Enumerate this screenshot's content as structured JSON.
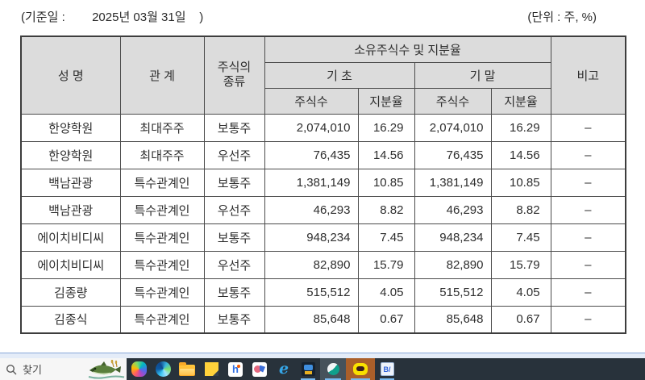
{
  "document": {
    "base_date_line": "(기준일 :        2025년 03월 31일    )",
    "unit_label": "(단위 : 주, %)"
  },
  "table": {
    "headers": {
      "name": "성 명",
      "relation": "관 계",
      "stock_type": "주식의\n종류",
      "ownership_group": "소유주식수 및 지분율",
      "begin": "기 초",
      "end": "기 말",
      "shares": "주식수",
      "ratio": "지분율",
      "note": "비고"
    },
    "rows": [
      {
        "name": "한양학원",
        "relation": "최대주주",
        "stock_type": "보통주",
        "begin_shares": "2,074,010",
        "begin_ratio": "16.29",
        "end_shares": "2,074,010",
        "end_ratio": "16.29",
        "note": "–"
      },
      {
        "name": "한양학원",
        "relation": "최대주주",
        "stock_type": "우선주",
        "begin_shares": "76,435",
        "begin_ratio": "14.56",
        "end_shares": "76,435",
        "end_ratio": "14.56",
        "note": "–"
      },
      {
        "name": "백남관광",
        "relation": "특수관계인",
        "stock_type": "보통주",
        "begin_shares": "1,381,149",
        "begin_ratio": "10.85",
        "end_shares": "1,381,149",
        "end_ratio": "10.85",
        "note": "–"
      },
      {
        "name": "백남관광",
        "relation": "특수관계인",
        "stock_type": "우선주",
        "begin_shares": "46,293",
        "begin_ratio": "8.82",
        "end_shares": "46,293",
        "end_ratio": "8.82",
        "note": "–"
      },
      {
        "name": "에이치비디씨",
        "relation": "특수관계인",
        "stock_type": "보통주",
        "begin_shares": "948,234",
        "begin_ratio": "7.45",
        "end_shares": "948,234",
        "end_ratio": "7.45",
        "note": "–"
      },
      {
        "name": "에이치비디씨",
        "relation": "특수관계인",
        "stock_type": "우선주",
        "begin_shares": "82,890",
        "begin_ratio": "15.79",
        "end_shares": "82,890",
        "end_ratio": "15.79",
        "note": "–"
      },
      {
        "name": "김종량",
        "relation": "특수관계인",
        "stock_type": "보통주",
        "begin_shares": "515,512",
        "begin_ratio": "4.05",
        "end_shares": "515,512",
        "end_ratio": "4.05",
        "note": "–"
      },
      {
        "name": "김종식",
        "relation": "특수관계인",
        "stock_type": "보통주",
        "begin_shares": "85,648",
        "begin_ratio": "0.67",
        "end_shares": "85,648",
        "end_ratio": "0.67",
        "note": "–"
      }
    ]
  },
  "taskbar": {
    "search_label": "찾기",
    "icon_glyphs": {
      "ie": "e",
      "docapp": "B/"
    },
    "icons": [
      "search-icon",
      "search-highlight-fish-icon",
      "copilot-icon",
      "edge-icon",
      "file-explorer-icon",
      "sticky-notes-icon",
      "hwp-icon",
      "pink-app-icon",
      "internet-explorer-icon",
      "game-app-icon",
      "whale-browser-icon",
      "kakaotalk-icon",
      "document-app-icon"
    ]
  },
  "colors": {
    "header_bg": "#dcdcdc",
    "table_border": "#4c4c4c",
    "text": "#303030",
    "taskbar_bg": "#28323b",
    "strip_bg": "#e4ecf8",
    "strip_line": "#88a8d8",
    "accent_underline": "#79bbf2",
    "search_bg": "#f6f6f6",
    "kakao_yellow": "#fae100",
    "kakao_btn_bg": "#aa5f2a",
    "folder_yellow": "#ffc83d",
    "sticky_yellow": "#ffd23b",
    "ie_blue": "#35a6e8",
    "hwp_blue": "#2f6fe4",
    "whale_teal": "#0fa08c",
    "fish_green": "#5a7f3c"
  }
}
